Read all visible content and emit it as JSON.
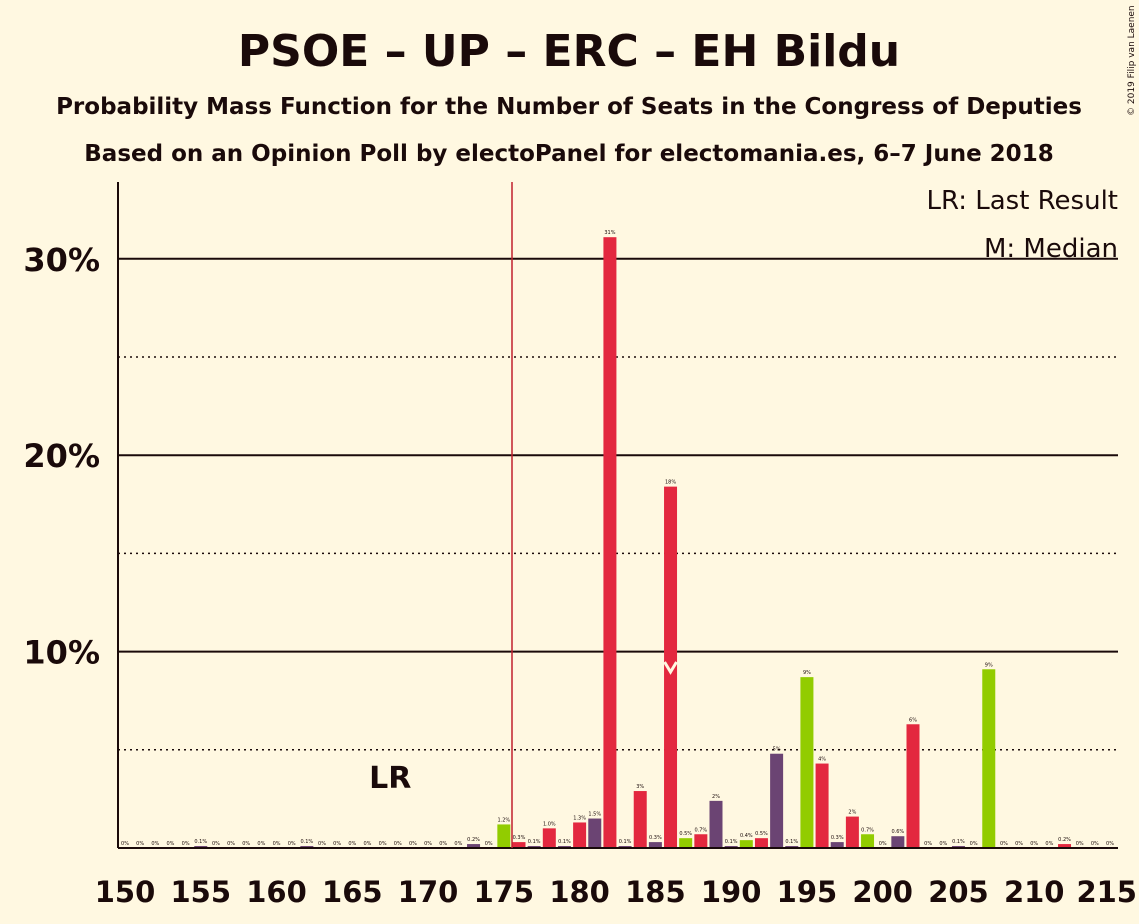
{
  "title": "PSOE – UP – ERC – EH Bildu",
  "subtitle1": "Probability Mass Function for the Number of Seats in the Congress of Deputies",
  "subtitle2": "Based on an Opinion Poll by electoPanel for electomania.es, 6–7 June 2018",
  "copyright": "© 2019 Filip van Laenen",
  "legend": {
    "lr": "LR: Last Result",
    "median": "M: Median"
  },
  "lr_marker_label": "LR",
  "colors": {
    "background": "#fff8e1",
    "psoe": "#e3283f",
    "up": "#6b4473",
    "erc": "#92cc00",
    "lr_line": "#c0202e",
    "text": "#1a0a0a"
  },
  "chart_data": {
    "type": "bar",
    "xlabel": "",
    "ylabel": "",
    "ylim": [
      0,
      33.5
    ],
    "xlim": [
      150,
      215
    ],
    "yticks": [
      10,
      20,
      30
    ],
    "ytick_labels": [
      "10%",
      "20%",
      "30%"
    ],
    "xticks": [
      150,
      155,
      160,
      165,
      170,
      175,
      180,
      185,
      190,
      195,
      200,
      205,
      210,
      215
    ],
    "last_result": 176,
    "median": 186,
    "bars": [
      {
        "x": 150,
        "value": 0,
        "label": "0%",
        "color": "#6b4473"
      },
      {
        "x": 151,
        "value": 0,
        "label": "0%",
        "color": "#6b4473"
      },
      {
        "x": 152,
        "value": 0,
        "label": "0%",
        "color": "#6b4473"
      },
      {
        "x": 153,
        "value": 0,
        "label": "0%",
        "color": "#6b4473"
      },
      {
        "x": 154,
        "value": 0,
        "label": "0%",
        "color": "#6b4473"
      },
      {
        "x": 155,
        "value": 0.1,
        "label": "0.1%",
        "color": "#6b4473"
      },
      {
        "x": 156,
        "value": 0,
        "label": "0%",
        "color": "#6b4473"
      },
      {
        "x": 157,
        "value": 0,
        "label": "0%",
        "color": "#6b4473"
      },
      {
        "x": 158,
        "value": 0,
        "label": "0%",
        "color": "#6b4473"
      },
      {
        "x": 159,
        "value": 0,
        "label": "0%",
        "color": "#6b4473"
      },
      {
        "x": 160,
        "value": 0,
        "label": "0%",
        "color": "#6b4473"
      },
      {
        "x": 161,
        "value": 0,
        "label": "0%",
        "color": "#6b4473"
      },
      {
        "x": 162,
        "value": 0.1,
        "label": "0.1%",
        "color": "#6b4473"
      },
      {
        "x": 163,
        "value": 0,
        "label": "0%",
        "color": "#6b4473"
      },
      {
        "x": 164,
        "value": 0,
        "label": "0%",
        "color": "#6b4473"
      },
      {
        "x": 165,
        "value": 0,
        "label": "0%",
        "color": "#6b4473"
      },
      {
        "x": 166,
        "value": 0,
        "label": "0%",
        "color": "#6b4473"
      },
      {
        "x": 167,
        "value": 0,
        "label": "0%",
        "color": "#6b4473"
      },
      {
        "x": 168,
        "value": 0,
        "label": "0%",
        "color": "#6b4473"
      },
      {
        "x": 169,
        "value": 0,
        "label": "0%",
        "color": "#6b4473"
      },
      {
        "x": 170,
        "value": 0,
        "label": "0%",
        "color": "#6b4473"
      },
      {
        "x": 171,
        "value": 0,
        "label": "0%",
        "color": "#6b4473"
      },
      {
        "x": 172,
        "value": 0,
        "label": "0%",
        "color": "#6b4473"
      },
      {
        "x": 173,
        "value": 0.2,
        "label": "0.2%",
        "color": "#6b4473"
      },
      {
        "x": 174,
        "value": 0,
        "label": "0%",
        "color": "#6b4473"
      },
      {
        "x": 175,
        "value": 1.2,
        "label": "1.2%",
        "color": "#92cc00"
      },
      {
        "x": 176,
        "value": 0.3,
        "label": "0.3%",
        "color": "#e3283f"
      },
      {
        "x": 177,
        "value": 0.1,
        "label": "0.1%",
        "color": "#6b4473"
      },
      {
        "x": 178,
        "value": 1.0,
        "label": "1.0%",
        "color": "#e3283f"
      },
      {
        "x": 179,
        "value": 0.1,
        "label": "0.1%",
        "color": "#6b4473"
      },
      {
        "x": 180,
        "value": 1.3,
        "label": "1.3%",
        "color": "#e3283f"
      },
      {
        "x": 181,
        "value": 1.5,
        "label": "1.5%",
        "color": "#6b4473"
      },
      {
        "x": 182,
        "value": 31.1,
        "label": "31%",
        "color": "#e3283f"
      },
      {
        "x": 183,
        "value": 0.1,
        "label": "0.1%",
        "color": "#6b4473"
      },
      {
        "x": 184,
        "value": 2.9,
        "label": "3%",
        "color": "#e3283f"
      },
      {
        "x": 185,
        "value": 0.3,
        "label": "0.3%",
        "color": "#6b4473"
      },
      {
        "x": 186,
        "value": 18.4,
        "label": "18%",
        "color": "#e3283f"
      },
      {
        "x": 187,
        "value": 0.5,
        "label": "0.5%",
        "color": "#92cc00"
      },
      {
        "x": 188,
        "value": 0.7,
        "label": "0.7%",
        "color": "#e3283f"
      },
      {
        "x": 189,
        "value": 2.4,
        "label": "2%",
        "color": "#6b4473"
      },
      {
        "x": 190,
        "value": 0.1,
        "label": "0.1%",
        "color": "#6b4473"
      },
      {
        "x": 191,
        "value": 0.4,
        "label": "0.4%",
        "color": "#92cc00"
      },
      {
        "x": 192,
        "value": 0.5,
        "label": "0.5%",
        "color": "#e3283f"
      },
      {
        "x": 193,
        "value": 4.8,
        "label": "5%",
        "color": "#6b4473"
      },
      {
        "x": 194,
        "value": 0.1,
        "label": "0.1%",
        "color": "#6b4473"
      },
      {
        "x": 195,
        "value": 8.7,
        "label": "9%",
        "color": "#92cc00"
      },
      {
        "x": 196,
        "value": 4.3,
        "label": "4%",
        "color": "#e3283f"
      },
      {
        "x": 197,
        "value": 0.3,
        "label": "0.3%",
        "color": "#6b4473"
      },
      {
        "x": 198,
        "value": 1.6,
        "label": "2%",
        "color": "#e3283f"
      },
      {
        "x": 199,
        "value": 0.7,
        "label": "0.7%",
        "color": "#92cc00"
      },
      {
        "x": 200,
        "value": 0,
        "label": "0%",
        "color": "#6b4473"
      },
      {
        "x": 201,
        "value": 0.6,
        "label": "0.6%",
        "color": "#6b4473"
      },
      {
        "x": 202,
        "value": 6.3,
        "label": "6%",
        "color": "#e3283f"
      },
      {
        "x": 203,
        "value": 0,
        "label": "0%",
        "color": "#6b4473"
      },
      {
        "x": 204,
        "value": 0,
        "label": "0%",
        "color": "#6b4473"
      },
      {
        "x": 205,
        "value": 0.1,
        "label": "0.1%",
        "color": "#6b4473"
      },
      {
        "x": 206,
        "value": 0,
        "label": "0%",
        "color": "#6b4473"
      },
      {
        "x": 207,
        "value": 9.1,
        "label": "9%",
        "color": "#92cc00"
      },
      {
        "x": 208,
        "value": 0,
        "label": "0%",
        "color": "#6b4473"
      },
      {
        "x": 209,
        "value": 0,
        "label": "0%",
        "color": "#6b4473"
      },
      {
        "x": 210,
        "value": 0,
        "label": "0%",
        "color": "#6b4473"
      },
      {
        "x": 211,
        "value": 0,
        "label": "0%",
        "color": "#6b4473"
      },
      {
        "x": 212,
        "value": 0.2,
        "label": "0.2%",
        "color": "#e3283f"
      },
      {
        "x": 213,
        "value": 0,
        "label": "0%",
        "color": "#6b4473"
      },
      {
        "x": 214,
        "value": 0,
        "label": "0%",
        "color": "#6b4473"
      },
      {
        "x": 215,
        "value": 0,
        "label": "0%",
        "color": "#6b4473"
      }
    ]
  }
}
